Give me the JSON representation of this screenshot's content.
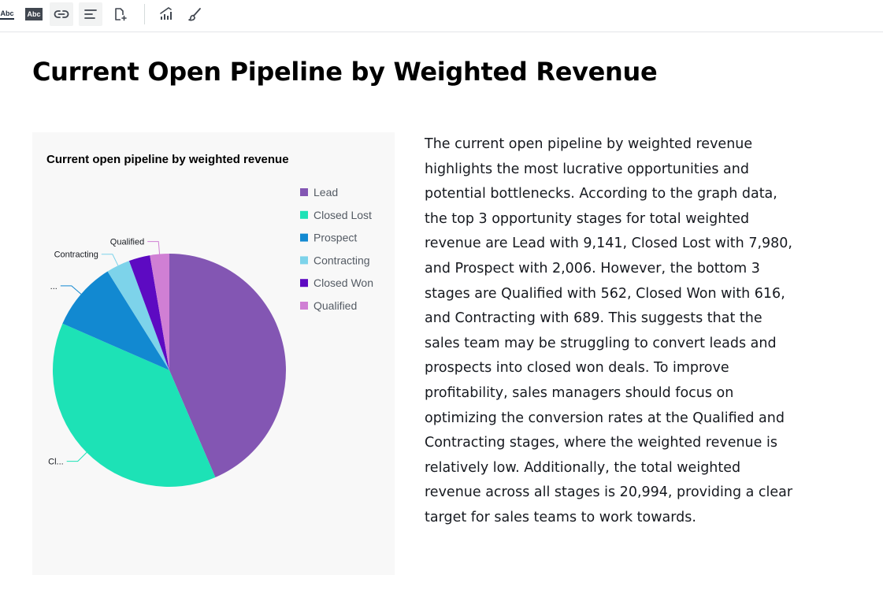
{
  "toolbar": {
    "buttons": [
      {
        "name": "text-style-button",
        "icon": "abc-underline-icon",
        "label": "Abc"
      },
      {
        "name": "text-highlight-button",
        "icon": "abc-box-icon",
        "label": "Abc"
      },
      {
        "name": "link-button",
        "icon": "link-icon"
      },
      {
        "name": "align-button",
        "icon": "align-left-icon"
      },
      {
        "name": "insert-button",
        "icon": "add-document-icon"
      },
      {
        "name": "chart-button",
        "icon": "chart-edit-icon"
      },
      {
        "name": "format-button",
        "icon": "brush-icon"
      }
    ]
  },
  "page": {
    "title": "Current Open Pipeline by Weighted Revenue",
    "narrative": "The current open pipeline by weighted revenue highlights the most lucrative opportunities and potential bottlenecks. According to the graph data, the top 3 opportunity stages for total weighted revenue are Lead with 9,141, Closed Lost with 7,980, and Prospect with 2,006. However, the bottom 3 stages are Qualified with 562, Closed Won with 616, and Contracting with 689. This suggests that the sales team may be struggling to convert leads and prospects into closed won deals. To improve profitability, sales managers should focus on optimizing the conversion rates at the Qualified and Contracting stages, where the weighted revenue is relatively low. Additionally, the total weighted revenue across all stages is 20,994, providing a clear target for sales teams to work towards."
  },
  "chart_data": {
    "type": "pie",
    "title": "Current open pipeline by weighted revenue",
    "legend_position": "right",
    "categories": [
      "Lead",
      "Closed Lost",
      "Prospect",
      "Contracting",
      "Closed Won",
      "Qualified"
    ],
    "values": [
      9141,
      7980,
      2006,
      689,
      616,
      562
    ],
    "colors": [
      "#8356b3",
      "#1de2b6",
      "#1289d1",
      "#7dd3ea",
      "#5d0ac2",
      "#d07fd4"
    ],
    "slice_labels": [
      "",
      "Cl...",
      "...",
      "Contracting",
      "",
      "Qualified"
    ]
  }
}
